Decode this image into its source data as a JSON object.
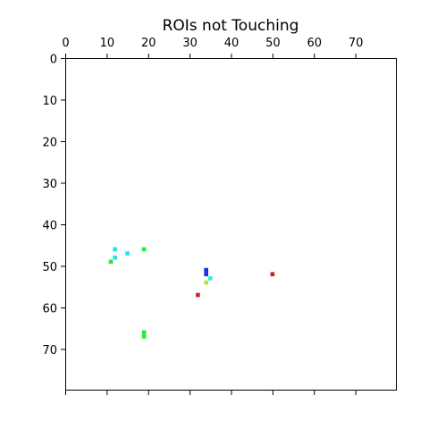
{
  "chart_data": {
    "type": "heatmap",
    "title": "ROIs not Touching",
    "xlabel": "",
    "ylabel": "",
    "xlim": [
      0,
      80
    ],
    "ylim": [
      80,
      0
    ],
    "x_axis_position": "top",
    "x_ticks": [
      0,
      10,
      20,
      30,
      40,
      50,
      60,
      70
    ],
    "x_tick_labels": [
      "0",
      "10",
      "20",
      "30",
      "40",
      "50",
      "60",
      "70"
    ],
    "y_ticks": [
      0,
      10,
      20,
      30,
      40,
      50,
      60,
      70
    ],
    "y_tick_labels": [
      "0",
      "10",
      "20",
      "30",
      "40",
      "50",
      "60",
      "70"
    ],
    "bottom_ticks": [
      0,
      10,
      20,
      30,
      40,
      50,
      60,
      70
    ],
    "grid": false,
    "background_color": "#ffffff",
    "pixels": [
      {
        "x": 12,
        "y": 46,
        "color": "#22e6e6"
      },
      {
        "x": 12,
        "y": 48,
        "color": "#22e6e6"
      },
      {
        "x": 15,
        "y": 47,
        "color": "#22e6e6"
      },
      {
        "x": 11,
        "y": 49,
        "color": "#33e633"
      },
      {
        "x": 19,
        "y": 46,
        "color": "#22ee33"
      },
      {
        "x": 34,
        "y": 51,
        "color": "#1a33dd"
      },
      {
        "x": 34,
        "y": 52,
        "color": "#1a33dd"
      },
      {
        "x": 35,
        "y": 53,
        "color": "#33eedd"
      },
      {
        "x": 34,
        "y": 54,
        "color": "#aaee33"
      },
      {
        "x": 50,
        "y": 52,
        "color": "#cc2222"
      },
      {
        "x": 32,
        "y": 57,
        "color": "#cc2233"
      },
      {
        "x": 19,
        "y": 66,
        "color": "#22ee33"
      },
      {
        "x": 19,
        "y": 67,
        "color": "#22ee33"
      }
    ]
  }
}
